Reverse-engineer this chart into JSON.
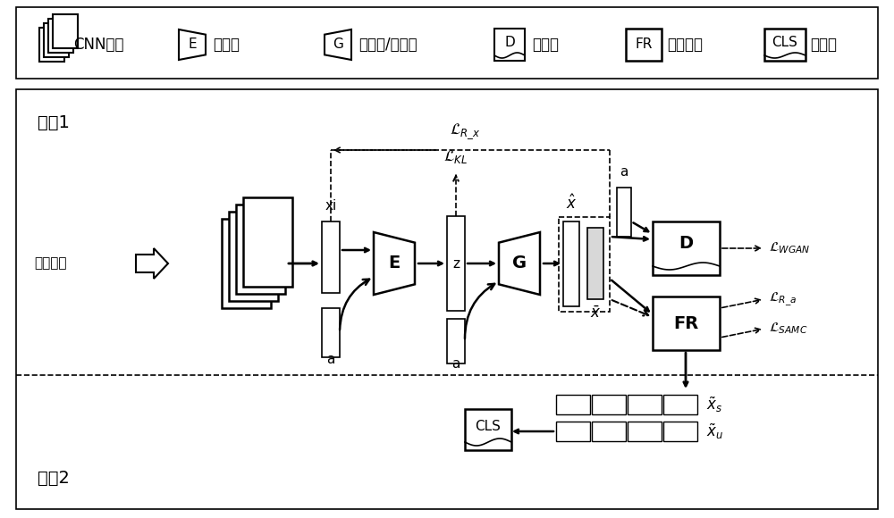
{
  "bg_color": "#ffffff",
  "figsize": [
    10.0,
    5.8
  ],
  "dpi": 100,
  "legend_labels": [
    "CNN核心",
    "编码器",
    "生成器/解码器",
    "鉴别器",
    "特征细化",
    "分类器"
  ],
  "stage1": "阶段1",
  "stage2": "阶段2",
  "input_text": "输入图像",
  "xi": "xi",
  "a": "a",
  "z": "z",
  "x_hat": "$\\hat{x}$",
  "x_bar": "$\\bar{x}$",
  "loss_kl": "$\\mathcal{L}_{KL}$",
  "loss_rx": "$\\mathcal{L}_{R\\_x}$",
  "loss_wgan": "$\\mathcal{L}_{WGAN}$",
  "loss_ra": "$\\mathcal{L}_{R\\_a}$",
  "loss_samc": "$\\mathcal{L}_{SAMC}$",
  "xs_tilde": "$\\tilde{x}_s$",
  "xu_tilde": "$\\tilde{x}_u$"
}
